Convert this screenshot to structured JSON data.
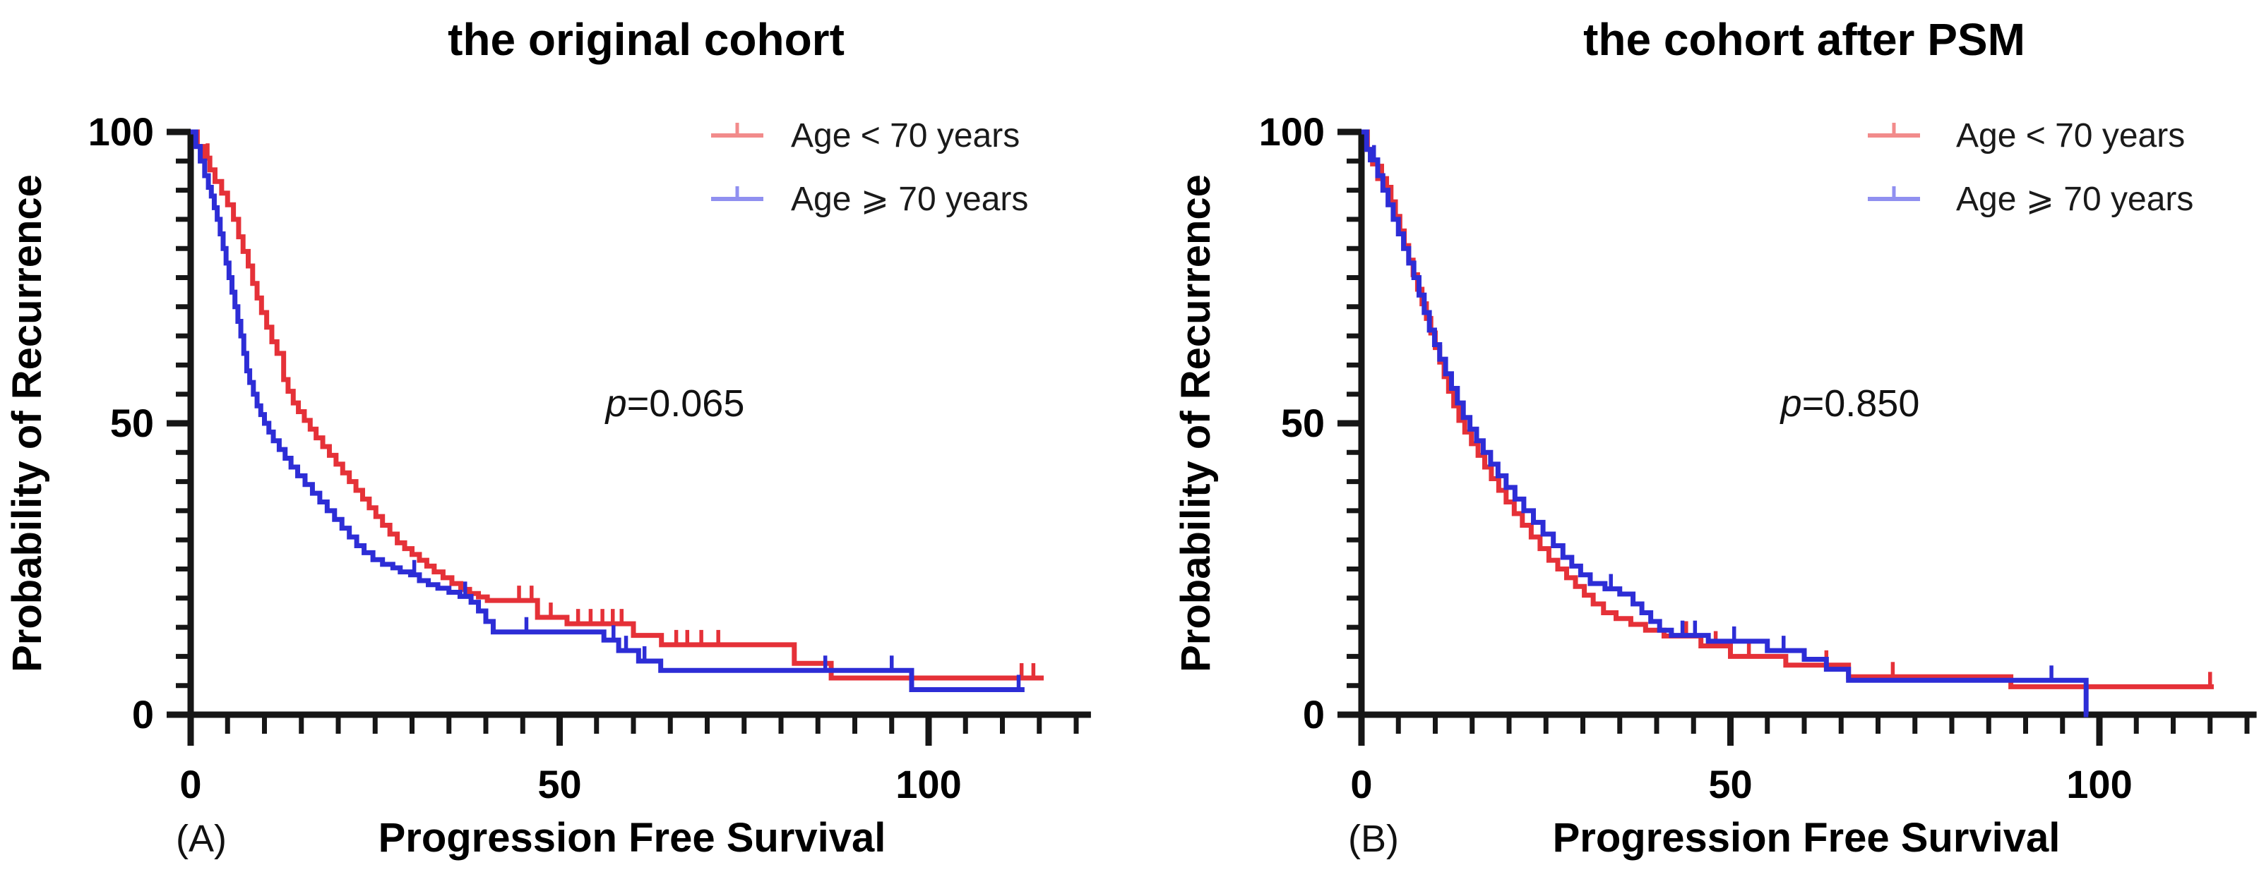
{
  "figure": {
    "panels": [
      {
        "label": "(A)",
        "p_prefix": "p",
        "p_value_text": "=0.065"
      },
      {
        "label": "(B)",
        "p_prefix": "p",
        "p_value_text": "=0.850"
      }
    ]
  },
  "chart_data": [
    {
      "type": "line",
      "subtype": "kaplan-meier-step",
      "title": "the original cohort",
      "xlabel": "Progression Free Survival",
      "ylabel": "Probability of Recurrence",
      "annotation": "p=0.065",
      "xlim": [
        0,
        122
      ],
      "ylim": [
        0,
        100
      ],
      "x_tick_labels": [
        "0",
        "50",
        "100"
      ],
      "y_tick_labels": [
        "0",
        "50",
        "100"
      ],
      "x_ticks": [
        0,
        50,
        100
      ],
      "y_ticks": [
        0,
        50,
        100
      ],
      "minor_tick_step": 5,
      "grid": "off",
      "legend_position": "upper right",
      "series": [
        {
          "name": "Age < 70 years",
          "color": "#e53138",
          "legend_color": "#f28b8b",
          "end_x": 115.6,
          "steps": [
            [
              0,
              100
            ],
            [
              0.9,
              97.5
            ],
            [
              1.8,
              95.5
            ],
            [
              2.6,
              93.5
            ],
            [
              3.3,
              91.5
            ],
            [
              4.2,
              89.5
            ],
            [
              5.0,
              87.5
            ],
            [
              5.8,
              85
            ],
            [
              6.5,
              82
            ],
            [
              7.1,
              79.5
            ],
            [
              7.8,
              77
            ],
            [
              8.4,
              74
            ],
            [
              9.0,
              71.5
            ],
            [
              9.6,
              69
            ],
            [
              10.3,
              66.5
            ],
            [
              11,
              64
            ],
            [
              11.7,
              62
            ],
            [
              12.6,
              57.5
            ],
            [
              13.2,
              55.5
            ],
            [
              13.9,
              53.5
            ],
            [
              14.6,
              52
            ],
            [
              15.4,
              50.5
            ],
            [
              16.2,
              49
            ],
            [
              17,
              47.5
            ],
            [
              17.9,
              46
            ],
            [
              18.8,
              44.5
            ],
            [
              19.7,
              43
            ],
            [
              20.6,
              41.5
            ],
            [
              21.5,
              40
            ],
            [
              22.4,
              38.5
            ],
            [
              23.3,
              37
            ],
            [
              24.2,
              35.5
            ],
            [
              25.1,
              34
            ],
            [
              26,
              32.5
            ],
            [
              27,
              31
            ],
            [
              28,
              29.5
            ],
            [
              29,
              28.5
            ],
            [
              30,
              27.5
            ],
            [
              31,
              26.5
            ],
            [
              32,
              25.5
            ],
            [
              33,
              24.5
            ],
            [
              34.2,
              23.5
            ],
            [
              35.4,
              22.5
            ],
            [
              36.6,
              21.5
            ],
            [
              37.8,
              20.8
            ],
            [
              39,
              20.2
            ],
            [
              40.2,
              19.6
            ],
            [
              47,
              16.7
            ],
            [
              51,
              15.6
            ],
            [
              60,
              13.6
            ],
            [
              63.8,
              12
            ],
            [
              81.8,
              8.8
            ],
            [
              86.8,
              6.3
            ]
          ],
          "censors": [
            2.3,
            44.5,
            46.2,
            48.8,
            52.5,
            54.2,
            55.8,
            57.2,
            58.4,
            65.8,
            67.3,
            69.2,
            71.5,
            112.6,
            114.2
          ]
        },
        {
          "name": "Age ⩾ 70 years",
          "color": "#2d2dd6",
          "legend_color": "#9090f0",
          "end_x": 113,
          "steps": [
            [
              0,
              100
            ],
            [
              0.7,
              97.5
            ],
            [
              1.3,
              95
            ],
            [
              1.9,
              92.5
            ],
            [
              2.4,
              90.5
            ],
            [
              2.8,
              89
            ],
            [
              3.2,
              87
            ],
            [
              3.6,
              85
            ],
            [
              4.0,
              82.5
            ],
            [
              4.4,
              80
            ],
            [
              4.8,
              77.5
            ],
            [
              5.2,
              75
            ],
            [
              5.6,
              72.5
            ],
            [
              6.0,
              70
            ],
            [
              6.4,
              67.5
            ],
            [
              6.8,
              65
            ],
            [
              7.2,
              62
            ],
            [
              7.6,
              59
            ],
            [
              8.0,
              57
            ],
            [
              8.5,
              55
            ],
            [
              9.0,
              53
            ],
            [
              9.5,
              51.5
            ],
            [
              10.0,
              50
            ],
            [
              10.6,
              48.5
            ],
            [
              11.2,
              47
            ],
            [
              12,
              45.5
            ],
            [
              12.8,
              44
            ],
            [
              13.6,
              42.5
            ],
            [
              14.5,
              41
            ],
            [
              15.5,
              39.5
            ],
            [
              16.5,
              38
            ],
            [
              17.5,
              36.5
            ],
            [
              18.5,
              35
            ],
            [
              19.5,
              33.5
            ],
            [
              20.5,
              32
            ],
            [
              21.5,
              30.5
            ],
            [
              22.5,
              29
            ],
            [
              23.5,
              27.8
            ],
            [
              24.7,
              26.6
            ],
            [
              26,
              25.8
            ],
            [
              27.4,
              25.2
            ],
            [
              28.4,
              24.5
            ],
            [
              29.8,
              24
            ],
            [
              31,
              23
            ],
            [
              32.2,
              22.3
            ],
            [
              33.5,
              21.7
            ],
            [
              35,
              21
            ],
            [
              36.5,
              20.3
            ],
            [
              38,
              19.3
            ],
            [
              39,
              17.8
            ],
            [
              40,
              16
            ],
            [
              41,
              14.2
            ],
            [
              56,
              12.8
            ],
            [
              58,
              11
            ],
            [
              60.7,
              9.2
            ],
            [
              63.7,
              7.6
            ],
            [
              97.7,
              4.3
            ]
          ],
          "censors": [
            30.3,
            37.2,
            45.5,
            57.3,
            59,
            61.5,
            86,
            95,
            112.2
          ]
        }
      ]
    },
    {
      "type": "line",
      "subtype": "kaplan-meier-step",
      "title": "the cohort after PSM",
      "xlabel": "Progression Free Survival",
      "ylabel": "Probability of Recurrence",
      "annotation": "p=0.850",
      "xlim": [
        0,
        121.3
      ],
      "ylim": [
        0,
        100
      ],
      "x_tick_labels": [
        "0",
        "50",
        "100"
      ],
      "y_tick_labels": [
        "0",
        "50",
        "100"
      ],
      "x_ticks": [
        0,
        50,
        100
      ],
      "y_ticks": [
        0,
        50,
        100
      ],
      "minor_tick_step": 5,
      "grid": "off",
      "legend_position": "upper right",
      "series": [
        {
          "name": "Age < 70 years",
          "color": "#e53138",
          "legend_color": "#f28b8b",
          "end_x": 115.5,
          "steps": [
            [
              0,
              100
            ],
            [
              0.8,
              97
            ],
            [
              1.5,
              94.5
            ],
            [
              2.2,
              92
            ],
            [
              3.4,
              90.5
            ],
            [
              4.0,
              88
            ],
            [
              4.6,
              85.5
            ],
            [
              5.2,
              83
            ],
            [
              5.8,
              80.5
            ],
            [
              6.4,
              78
            ],
            [
              7.0,
              75.5
            ],
            [
              7.6,
              73
            ],
            [
              8.2,
              70.5
            ],
            [
              8.8,
              68
            ],
            [
              9.4,
              65.5
            ],
            [
              10,
              63
            ],
            [
              10.6,
              60.5
            ],
            [
              11.2,
              58
            ],
            [
              11.8,
              55.5
            ],
            [
              12.5,
              53
            ],
            [
              13.2,
              50.5
            ],
            [
              14,
              48.5
            ],
            [
              14.9,
              46.5
            ],
            [
              15.8,
              44.5
            ],
            [
              16.7,
              42.5
            ],
            [
              17.6,
              40.5
            ],
            [
              18.6,
              38.5
            ],
            [
              19.6,
              36.5
            ],
            [
              20.7,
              34.5
            ],
            [
              21.8,
              32.5
            ],
            [
              23,
              30.5
            ],
            [
              24.2,
              28.5
            ],
            [
              25.4,
              26.5
            ],
            [
              26.6,
              25
            ],
            [
              27.8,
              23.5
            ],
            [
              29,
              22
            ],
            [
              30.2,
              20.5
            ],
            [
              31.4,
              19
            ],
            [
              32.8,
              17.5
            ],
            [
              34.5,
              16.5
            ],
            [
              36.5,
              15.5
            ],
            [
              38.5,
              14.5
            ],
            [
              41,
              13.5
            ],
            [
              46,
              11.8
            ],
            [
              50,
              10
            ],
            [
              57.5,
              8.5
            ],
            [
              66,
              6.5
            ],
            [
              88,
              4.8
            ]
          ],
          "censors": [
            2.8,
            44,
            48,
            52.5,
            63,
            72,
            115
          ]
        },
        {
          "name": "Age ⩾ 70 years",
          "color": "#2d2dd6",
          "legend_color": "#9090f0",
          "end_x": 98.5,
          "steps": [
            [
              0,
              100
            ],
            [
              0.7,
              97
            ],
            [
              1.2,
              95.2
            ],
            [
              2.2,
              92.5
            ],
            [
              2.9,
              90
            ],
            [
              3.6,
              87.5
            ],
            [
              4.3,
              85
            ],
            [
              5.0,
              82.5
            ],
            [
              5.7,
              80
            ],
            [
              6.4,
              77.5
            ],
            [
              7.1,
              75
            ],
            [
              7.8,
              72
            ],
            [
              8.5,
              69
            ],
            [
              9.2,
              66
            ],
            [
              9.9,
              63.5
            ],
            [
              10.6,
              61
            ],
            [
              11.4,
              58.5
            ],
            [
              12.2,
              56
            ],
            [
              13,
              53.5
            ],
            [
              13.8,
              51
            ],
            [
              14.7,
              49
            ],
            [
              15.6,
              47
            ],
            [
              16.5,
              45
            ],
            [
              17.5,
              43
            ],
            [
              18.5,
              41
            ],
            [
              19.6,
              39
            ],
            [
              20.8,
              37
            ],
            [
              22,
              35
            ],
            [
              23.3,
              33
            ],
            [
              24.6,
              31
            ],
            [
              26,
              29
            ],
            [
              27.3,
              27
            ],
            [
              28.5,
              25.5
            ],
            [
              29.7,
              24
            ],
            [
              31,
              22.5
            ],
            [
              33,
              21.6
            ],
            [
              35,
              20.7
            ],
            [
              36.8,
              19
            ],
            [
              38,
              17.5
            ],
            [
              39.2,
              16
            ],
            [
              40.4,
              14.5
            ],
            [
              42,
              13.6
            ],
            [
              47,
              12.6
            ],
            [
              55,
              11
            ],
            [
              60,
              9.5
            ],
            [
              63,
              7.8
            ],
            [
              66,
              5.9
            ],
            [
              98.2,
              0
            ]
          ],
          "censors": [
            1.7,
            33.8,
            43.5,
            45.2,
            50.5,
            57.2,
            93.5
          ]
        }
      ]
    }
  ]
}
